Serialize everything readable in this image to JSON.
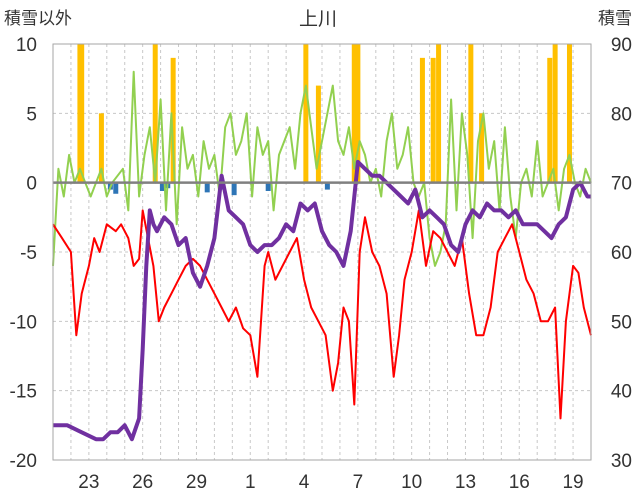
{
  "chart_data": {
    "type": "line",
    "title": "上川",
    "ylabel_left": "積雪以外",
    "ylabel_right": "積雪",
    "ylim_left": [
      -20,
      10
    ],
    "ylim_right": [
      30,
      90
    ],
    "yticks_left": [
      "10",
      "5",
      "0",
      "-5",
      "-10",
      "-15",
      "-20"
    ],
    "yticks_right": [
      "90",
      "80",
      "70",
      "60",
      "50",
      "40",
      "30"
    ],
    "xlim_days": [
      0,
      30
    ],
    "x_ticks": [
      {
        "label": "23",
        "day": 2
      },
      {
        "label": "26",
        "day": 5
      },
      {
        "label": "29",
        "day": 8
      },
      {
        "label": "1",
        "day": 11
      },
      {
        "label": "4",
        "day": 14
      },
      {
        "label": "7",
        "day": 17
      },
      {
        "label": "10",
        "day": 20
      },
      {
        "label": "13",
        "day": 23
      },
      {
        "label": "16",
        "day": 26
      },
      {
        "label": "19",
        "day": 29
      }
    ],
    "grid": true,
    "legend": "none",
    "series": [
      {
        "color": "#92d050",
        "axis": "left",
        "x": [
          0.0,
          0.3,
          0.6,
          0.9,
          1.2,
          1.5,
          1.8,
          2.1,
          2.4,
          2.7,
          3.0,
          3.3,
          3.6,
          3.9,
          4.2,
          4.5,
          4.8,
          5.1,
          5.4,
          5.7,
          6.0,
          6.3,
          6.6,
          6.9,
          7.2,
          7.5,
          7.8,
          8.1,
          8.4,
          8.7,
          9.0,
          9.3,
          9.6,
          9.9,
          10.2,
          10.5,
          10.8,
          11.1,
          11.4,
          11.7,
          12.0,
          12.3,
          12.6,
          12.9,
          13.2,
          13.5,
          13.8,
          14.1,
          14.4,
          14.7,
          15.0,
          15.3,
          15.6,
          15.9,
          16.2,
          16.5,
          16.8,
          17.1,
          17.4,
          17.7,
          18.0,
          18.3,
          18.6,
          18.9,
          19.2,
          19.5,
          19.8,
          20.1,
          20.4,
          20.7,
          21.0,
          21.3,
          21.6,
          21.9,
          22.2,
          22.5,
          22.8,
          23.1,
          23.4,
          23.7,
          24.0,
          24.3,
          24.6,
          24.9,
          25.2,
          25.5,
          25.8,
          26.1,
          26.4,
          26.7,
          27.0,
          27.3,
          27.6,
          27.9,
          28.2,
          28.5,
          28.8,
          29.1,
          29.4,
          29.7,
          30.0
        ],
        "values": [
          -6.0,
          1.0,
          -1.0,
          2.0,
          0.0,
          1.0,
          0.0,
          -1.0,
          0.0,
          1.0,
          -1.0,
          0.0,
          0.5,
          1.0,
          -2.0,
          8.0,
          -1.0,
          2.0,
          4.0,
          0.0,
          6.0,
          -2.0,
          5.0,
          -3.0,
          4.0,
          1.0,
          2.0,
          -1.0,
          3.0,
          1.0,
          2.0,
          -1.0,
          4.0,
          5.0,
          2.0,
          3.0,
          5.0,
          -1.0,
          4.0,
          2.0,
          3.0,
          -2.0,
          2.0,
          3.0,
          4.0,
          1.0,
          5.0,
          7.0,
          4.0,
          1.0,
          3.0,
          5.0,
          7.0,
          3.0,
          2.0,
          4.0,
          1.0,
          3.0,
          2.0,
          0.0,
          1.0,
          -1.0,
          3.0,
          5.0,
          1.0,
          2.0,
          4.0,
          0.0,
          -1.0,
          0.0,
          -4.0,
          -6.0,
          -5.0,
          -3.0,
          6.0,
          -2.0,
          5.0,
          2.0,
          -4.0,
          3.0,
          5.0,
          1.0,
          3.0,
          -2.0,
          4.0,
          -1.0,
          -4.0,
          0.0,
          1.0,
          -1.0,
          3.0,
          -1.0,
          0.0,
          1.0,
          -2.0,
          1.0,
          2.0,
          0.0,
          -1.0,
          1.0,
          0.0
        ]
      },
      {
        "color": "#ff0000",
        "axis": "left",
        "x": [
          0.0,
          0.5,
          1.0,
          1.3,
          1.6,
          2.0,
          2.3,
          2.6,
          3.0,
          3.5,
          3.8,
          4.2,
          4.5,
          4.8,
          5.0,
          5.3,
          5.6,
          5.9,
          6.2,
          6.6,
          7.0,
          7.4,
          7.8,
          8.2,
          8.6,
          9.0,
          9.4,
          9.8,
          10.2,
          10.6,
          11.0,
          11.4,
          11.8,
          12.0,
          12.4,
          12.8,
          13.2,
          13.6,
          14.0,
          14.4,
          14.8,
          15.2,
          15.6,
          15.9,
          16.2,
          16.5,
          16.8,
          17.1,
          17.4,
          17.8,
          18.2,
          18.6,
          19.0,
          19.3,
          19.6,
          20.0,
          20.4,
          20.8,
          21.2,
          21.6,
          22.0,
          22.4,
          22.8,
          23.2,
          23.6,
          24.0,
          24.4,
          24.8,
          25.2,
          25.6,
          26.0,
          26.4,
          26.8,
          27.2,
          27.6,
          28.0,
          28.3,
          28.6,
          29.0,
          29.3,
          29.6,
          30.0
        ],
        "values": [
          -3.0,
          -4.0,
          -5.0,
          -11.0,
          -8.0,
          -6.0,
          -4.0,
          -5.0,
          -3.0,
          -3.5,
          -3.0,
          -4.0,
          -6.0,
          -5.5,
          -2.0,
          -4.0,
          -6.0,
          -10.0,
          -9.0,
          -8.0,
          -7.0,
          -6.0,
          -5.5,
          -6.0,
          -7.0,
          -8.0,
          -9.0,
          -10.0,
          -9.0,
          -10.5,
          -11.0,
          -14.0,
          -6.0,
          -5.0,
          -7.0,
          -6.0,
          -5.0,
          -4.0,
          -7.0,
          -9.0,
          -10.0,
          -11.0,
          -15.0,
          -13.0,
          -9.0,
          -10.0,
          -16.0,
          -5.0,
          -2.5,
          -5.0,
          -6.0,
          -8.0,
          -14.0,
          -11.0,
          -7.0,
          -5.0,
          -2.0,
          -6.0,
          -3.5,
          -4.0,
          -5.0,
          -6.0,
          -4.0,
          -8.0,
          -11.0,
          -11.0,
          -9.0,
          -5.0,
          -4.0,
          -3.0,
          -5.0,
          -7.0,
          -8.0,
          -10.0,
          -10.0,
          -9.0,
          -17.0,
          -10.0,
          -6.0,
          -6.5,
          -9.0,
          -11.0
        ]
      },
      {
        "color": "#7030a0",
        "axis": "right",
        "x": [
          0.0,
          0.8,
          1.6,
          2.4,
          2.8,
          3.2,
          3.6,
          4.0,
          4.4,
          4.8,
          5.0,
          5.2,
          5.4,
          5.6,
          5.8,
          6.2,
          6.6,
          7.0,
          7.4,
          7.8,
          8.2,
          8.6,
          9.0,
          9.4,
          9.8,
          10.2,
          10.6,
          11.0,
          11.4,
          11.8,
          12.2,
          12.6,
          13.0,
          13.4,
          13.8,
          14.2,
          14.6,
          15.0,
          15.4,
          15.8,
          16.2,
          16.6,
          17.0,
          17.4,
          17.8,
          18.2,
          18.6,
          19.0,
          19.4,
          19.8,
          20.2,
          20.6,
          21.0,
          21.4,
          21.8,
          22.2,
          22.6,
          23.0,
          23.4,
          23.8,
          24.2,
          24.6,
          25.0,
          25.4,
          25.8,
          26.2,
          26.6,
          27.0,
          27.4,
          27.8,
          28.2,
          28.6,
          29.0,
          29.4,
          29.8,
          30.0
        ],
        "values": [
          35,
          35,
          34,
          33,
          33,
          34,
          34,
          35,
          33,
          36,
          46,
          58,
          66,
          64,
          63,
          65,
          64,
          61,
          62,
          57,
          55,
          58,
          62,
          71,
          66,
          65,
          64,
          61,
          60,
          61,
          61,
          62,
          64,
          63,
          67,
          66,
          67,
          63,
          61,
          60,
          58,
          63,
          73,
          72,
          71,
          71,
          70,
          69,
          68,
          67,
          69,
          65,
          66,
          65,
          64,
          61,
          60,
          64,
          66,
          65,
          67,
          66,
          66,
          65,
          66,
          64,
          64,
          64,
          63,
          62,
          64,
          65,
          69,
          70,
          68,
          68
        ]
      },
      {
        "color": "#ffc000",
        "axis": "left",
        "type": "bar",
        "x": [
          1.5,
          1.6,
          2.7,
          5.7,
          6.7,
          14.1,
          14.8,
          16.8,
          17.0,
          20.6,
          21.2,
          21.5,
          23.3,
          23.9,
          27.7,
          28.0,
          28.8
        ],
        "values": [
          10,
          10,
          5,
          10,
          9,
          10,
          7,
          10,
          10,
          9,
          9,
          10,
          10,
          5,
          9,
          10,
          10
        ]
      },
      {
        "color": "#2e75b6",
        "axis": "left",
        "type": "bar",
        "x": [
          3.2,
          3.5,
          6.1,
          6.4,
          8.6,
          9.4,
          10.1,
          12.0,
          15.3
        ],
        "values": [
          -0.5,
          -0.8,
          -0.6,
          -0.4,
          -0.7,
          -0.5,
          -0.9,
          -0.6,
          -0.5
        ]
      }
    ]
  }
}
